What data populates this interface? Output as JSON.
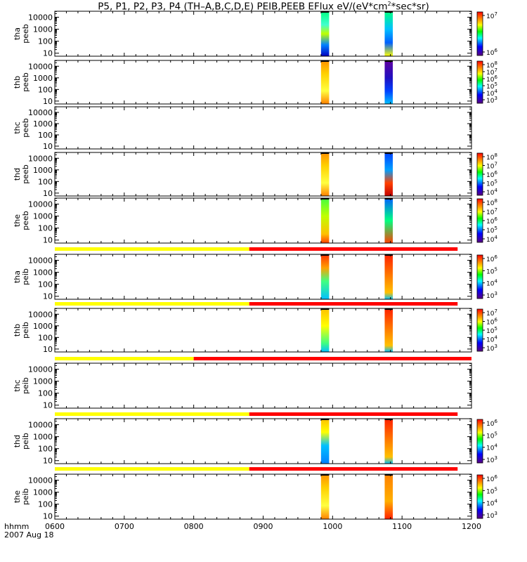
{
  "title_main": "P5, P1, P2, P3, P4 (TH–A,B,C,D,E) PEIB,PEEB EFlux eV/(eV*cm",
  "title_sup": "2",
  "title_tail": "*sec*sr)",
  "footer": {
    "label": "hhmm",
    "date": "2007 Aug 18"
  },
  "chart_data": {
    "type": "heatmap",
    "title": "P5, P1, P2, P3, P4 (TH–A,B,C,D,E) PEIB,PEEB EFlux eV/(eV*cm2*sec*sr)",
    "x": {
      "label": "hhmm",
      "date": "2007 Aug 18",
      "ticks": [
        "0600",
        "0700",
        "0800",
        "0900",
        "1000",
        "1100",
        "1200"
      ],
      "range_hhmm": [
        "0600",
        "1200"
      ]
    },
    "y": {
      "scale": "log",
      "ticks": [
        "10",
        "100",
        "1000",
        "10000"
      ]
    },
    "colorscale": "rainbow (purple-blue-green-yellow-red)",
    "panels": [
      {
        "name": "tha_peeb",
        "label": [
          "tha",
          "peeb"
        ],
        "colorbar_ticks": [
          "10^7",
          "10^6"
        ],
        "bands": [
          {
            "start": "0950",
            "end": "0957",
            "color": "green-yellow-blue"
          },
          {
            "start": "1045",
            "end": "1052",
            "color": "green-blue-yellow"
          }
        ]
      },
      {
        "name": "thb_peeb",
        "label": [
          "thb",
          "peeb"
        ],
        "colorbar_ticks": [
          "10^8",
          "10^7",
          "10^6",
          "10^5",
          "10^4",
          "10^3"
        ],
        "bands": [
          {
            "start": "0950",
            "end": "0957",
            "color": "yellow-orange"
          },
          {
            "start": "1045",
            "end": "1052",
            "color": "blue-purple"
          }
        ]
      },
      {
        "name": "thc_peeb",
        "label": [
          "thc",
          "peeb"
        ],
        "colorbar_ticks": [],
        "bands": []
      },
      {
        "name": "thd_peeb",
        "label": [
          "thd",
          "peeb"
        ],
        "colorbar_ticks": [
          "10^8",
          "10^7",
          "10^6",
          "10^5",
          "10^4"
        ],
        "bands": [
          {
            "start": "0950",
            "end": "0957",
            "color": "yellow-orange"
          },
          {
            "start": "1045",
            "end": "1052",
            "color": "blue-red"
          }
        ]
      },
      {
        "name": "the_peeb",
        "label": [
          "the",
          "peeb"
        ],
        "colorbar_ticks": [
          "10^8",
          "10^7",
          "10^6",
          "10^5",
          "10^4"
        ],
        "bands": [
          {
            "start": "0950",
            "end": "0957",
            "color": "green-yellow"
          },
          {
            "start": "1045",
            "end": "1052",
            "color": "blue-green"
          }
        ]
      },
      {
        "name": "tha_peib",
        "label": [
          "tha",
          "peib"
        ],
        "colorbar_ticks": [
          "10^6",
          "10^5",
          "10^4",
          "10^3"
        ],
        "mode_bar": {
          "yellow_until": "0848",
          "red_until": "1148"
        },
        "bands": [
          {
            "start": "0950",
            "end": "0957",
            "color": "red-green"
          },
          {
            "start": "1045",
            "end": "1052",
            "color": "red-orange"
          }
        ]
      },
      {
        "name": "thb_peib",
        "label": [
          "thb",
          "peib"
        ],
        "colorbar_ticks": [
          "10^7",
          "10^6",
          "10^5",
          "10^4",
          "10^3"
        ],
        "mode_bar": {
          "yellow_until": "0848",
          "red_until": "1148"
        },
        "bands": [
          {
            "start": "0950",
            "end": "0957",
            "color": "yellow-green"
          },
          {
            "start": "1045",
            "end": "1052",
            "color": "red-orange"
          }
        ]
      },
      {
        "name": "thc_peib",
        "label": [
          "thc",
          "peib"
        ],
        "colorbar_ticks": [],
        "mode_bar": {
          "yellow_until": "0800",
          "red_until": "1200"
        },
        "bands": []
      },
      {
        "name": "thd_peib",
        "label": [
          "thd",
          "peib"
        ],
        "colorbar_ticks": [
          "10^6",
          "10^5",
          "10^4",
          "10^3"
        ],
        "mode_bar": {
          "yellow_until": "0848",
          "red_until": "1148"
        },
        "bands": [
          {
            "start": "0950",
            "end": "0957",
            "color": "yellow-blue"
          },
          {
            "start": "1045",
            "end": "1052",
            "color": "red-orange"
          }
        ]
      },
      {
        "name": "the_peib",
        "label": [
          "the",
          "peib"
        ],
        "colorbar_ticks": [
          "10^6",
          "10^5",
          "10^4",
          "10^3"
        ],
        "mode_bar": {
          "yellow_until": "0848",
          "red_until": "1148"
        },
        "bands": [
          {
            "start": "0950",
            "end": "0957",
            "color": "yellow-orange"
          },
          {
            "start": "1045",
            "end": "1052",
            "color": "orange-red"
          }
        ]
      }
    ]
  }
}
